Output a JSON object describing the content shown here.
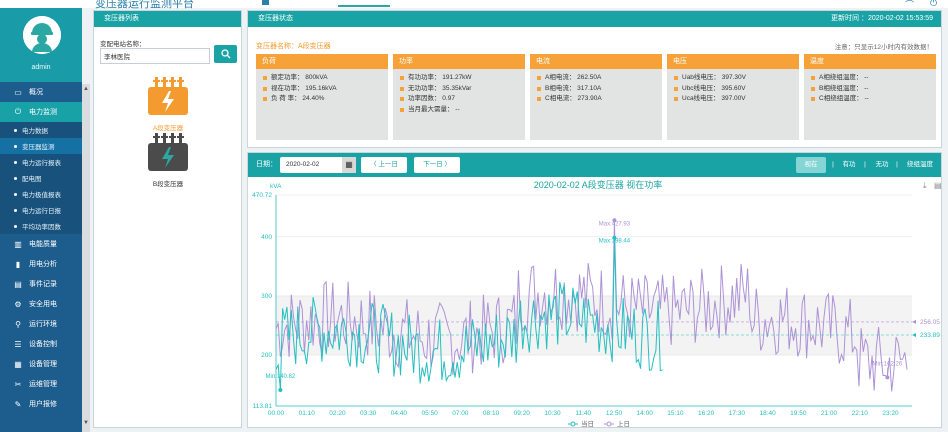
{
  "header": {
    "title": "变压器运行监测平台"
  },
  "sidebar": {
    "user": "admin",
    "items": [
      {
        "label": "概况",
        "icon": "monitor-icon"
      },
      {
        "label": "电力监测",
        "icon": "plug-icon",
        "active": true
      }
    ],
    "subitems": [
      {
        "label": "电力数据"
      },
      {
        "label": "变压器监测",
        "active": true
      },
      {
        "label": "电力运行报表"
      },
      {
        "label": "配电图"
      },
      {
        "label": "电力极值报表"
      },
      {
        "label": "电力运行日报"
      },
      {
        "label": "平均功率因数"
      }
    ],
    "items2": [
      {
        "label": "电能质量",
        "icon": "grid-icon"
      },
      {
        "label": "用电分析",
        "icon": "bar-icon"
      },
      {
        "label": "事件记录",
        "icon": "doc-icon"
      },
      {
        "label": "安全用电",
        "icon": "gear-icon"
      },
      {
        "label": "运行环境",
        "icon": "signal-icon"
      },
      {
        "label": "设备控制",
        "icon": "sliders-icon"
      },
      {
        "label": "设备管理",
        "icon": "list-icon"
      },
      {
        "label": "运维管理",
        "icon": "tools-icon"
      },
      {
        "label": "用户报修",
        "icon": "edit-icon"
      }
    ]
  },
  "transformer_list": {
    "title": "变压器列表",
    "search_label": "变配电站名称：",
    "search_value": "李林医院",
    "items": [
      {
        "name": "A段变压器",
        "color": "#f39b2e",
        "active": true
      },
      {
        "name": "B段变压器",
        "color": "#4b4b4b",
        "active": false
      }
    ]
  },
  "status": {
    "title": "变压器状态",
    "update_label": "更新时间 ：",
    "update_time": "2020-02-02 15:53:59",
    "name_label": "变压器名称：",
    "name": "A段变压器",
    "note": "注意：只显示12小时内有效数据！",
    "cards": [
      {
        "title": "负荷",
        "rows": [
          "额定功率：  800kVA",
          "视在功率：  195.16kVA",
          "负 荷 率：  24.40%"
        ]
      },
      {
        "title": "功率",
        "rows": [
          "有功功率：  191.27kW",
          "无功功率：  35.35kVar",
          "功率因数：  0.97",
          "当月最大需量：  --"
        ]
      },
      {
        "title": "电流",
        "rows": [
          "A相电流：  262.50A",
          "B相电流：  317.10A",
          "C相电流：  273.90A"
        ]
      },
      {
        "title": "电压",
        "rows": [
          "Uab线电压：  397.30V",
          "Ubc线电压：  395.60V",
          "Uca线电压：  397.00V"
        ]
      },
      {
        "title": "温度",
        "rows": [
          "A相绕组温度：  --",
          "B相绕组温度：  --",
          "C相绕组温度：  --"
        ]
      }
    ]
  },
  "chart_panel": {
    "date_label": "日期：",
    "date_value": "2020-02-02",
    "prev_label": "上一日",
    "next_label": "下一日",
    "tabs": [
      "视在",
      "有功",
      "无功",
      "绕组温度"
    ],
    "active_tab": "视在"
  },
  "chart_data": {
    "type": "line",
    "title": "2020-02-02  A段变压器  视在功率",
    "ylabel": "kVA",
    "ylim": [
      113.81,
      470.72
    ],
    "yticks": [
      "470.72",
      "400",
      "300",
      "200",
      "113.81"
    ],
    "xticks": [
      "00:00",
      "01:10",
      "02:20",
      "03:30",
      "04:40",
      "05:50",
      "07:00",
      "08:10",
      "09:20",
      "10:30",
      "11:40",
      "12:50",
      "14:00",
      "15:10",
      "16:20",
      "17:30",
      "18:40",
      "19:50",
      "21:00",
      "22:10",
      "23:20"
    ],
    "max_label": "Max:427.93",
    "max2_label": "Max:398.44",
    "min_label": "Min:162.26",
    "min2_label": "Min:140.82",
    "avg_today": "256.05",
    "avg_yesterday": "233.89",
    "legend": [
      "当日",
      "上日"
    ],
    "series_colors": {
      "today": "#26bfc0",
      "yesterday": "#ad93d6"
    }
  }
}
